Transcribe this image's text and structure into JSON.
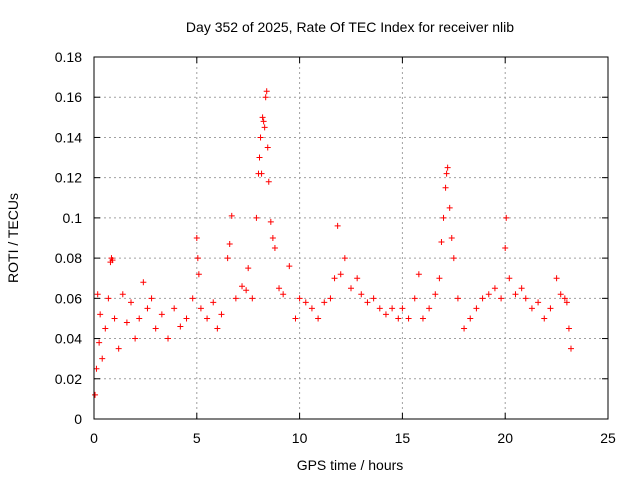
{
  "chart_data": {
    "type": "scatter",
    "title": "Day 352 of 2025, Rate Of TEC Index for receiver nlib",
    "xlabel": "GPS time / hours",
    "ylabel": "ROTI / TECUs",
    "xlim": [
      0,
      25
    ],
    "ylim": [
      0,
      0.18
    ],
    "x_ticks": [
      0,
      5,
      10,
      15,
      20,
      25
    ],
    "x_tick_labels": [
      "0",
      "5",
      "10",
      "15",
      "20",
      "25"
    ],
    "y_ticks": [
      0,
      0.02,
      0.04,
      0.06,
      0.08,
      0.1,
      0.12,
      0.14,
      0.16,
      0.18
    ],
    "y_tick_labels": [
      "0",
      "0.02",
      "0.04",
      "0.06",
      "0.08",
      "0.1",
      "0.12",
      "0.14",
      "0.16",
      "0.18"
    ],
    "grid": true,
    "marker": "plus",
    "series": [
      {
        "name": "ROTI",
        "color": "#ff0000",
        "points": [
          [
            0.05,
            0.012
          ],
          [
            0.12,
            0.025
          ],
          [
            0.18,
            0.062
          ],
          [
            0.25,
            0.038
          ],
          [
            0.3,
            0.052
          ],
          [
            0.4,
            0.03
          ],
          [
            0.55,
            0.045
          ],
          [
            0.7,
            0.06
          ],
          [
            0.8,
            0.078
          ],
          [
            0.85,
            0.08
          ],
          [
            0.9,
            0.079
          ],
          [
            1.0,
            0.05
          ],
          [
            1.2,
            0.035
          ],
          [
            1.4,
            0.062
          ],
          [
            1.6,
            0.048
          ],
          [
            1.8,
            0.058
          ],
          [
            2.0,
            0.04
          ],
          [
            2.2,
            0.05
          ],
          [
            2.4,
            0.068
          ],
          [
            2.6,
            0.055
          ],
          [
            2.8,
            0.06
          ],
          [
            3.0,
            0.045
          ],
          [
            3.3,
            0.052
          ],
          [
            3.6,
            0.04
          ],
          [
            3.9,
            0.055
          ],
          [
            4.2,
            0.046
          ],
          [
            4.5,
            0.05
          ],
          [
            4.8,
            0.06
          ],
          [
            5.0,
            0.09
          ],
          [
            5.05,
            0.08
          ],
          [
            5.1,
            0.072
          ],
          [
            5.2,
            0.055
          ],
          [
            5.5,
            0.05
          ],
          [
            5.8,
            0.058
          ],
          [
            6.0,
            0.045
          ],
          [
            6.2,
            0.052
          ],
          [
            6.5,
            0.08
          ],
          [
            6.6,
            0.087
          ],
          [
            6.7,
            0.101
          ],
          [
            6.9,
            0.06
          ],
          [
            7.2,
            0.066
          ],
          [
            7.4,
            0.064
          ],
          [
            7.5,
            0.075
          ],
          [
            7.7,
            0.06
          ],
          [
            7.9,
            0.1
          ],
          [
            8.0,
            0.122
          ],
          [
            8.05,
            0.13
          ],
          [
            8.1,
            0.14
          ],
          [
            8.15,
            0.122
          ],
          [
            8.2,
            0.15
          ],
          [
            8.25,
            0.148
          ],
          [
            8.3,
            0.145
          ],
          [
            8.35,
            0.16
          ],
          [
            8.4,
            0.163
          ],
          [
            8.45,
            0.135
          ],
          [
            8.5,
            0.118
          ],
          [
            8.6,
            0.098
          ],
          [
            8.7,
            0.09
          ],
          [
            8.8,
            0.085
          ],
          [
            9.0,
            0.065
          ],
          [
            9.2,
            0.062
          ],
          [
            9.5,
            0.076
          ],
          [
            9.8,
            0.05
          ],
          [
            10.0,
            0.06
          ],
          [
            10.3,
            0.058
          ],
          [
            10.6,
            0.055
          ],
          [
            10.9,
            0.05
          ],
          [
            11.2,
            0.058
          ],
          [
            11.5,
            0.06
          ],
          [
            11.7,
            0.07
          ],
          [
            11.85,
            0.096
          ],
          [
            12.0,
            0.072
          ],
          [
            12.2,
            0.08
          ],
          [
            12.5,
            0.065
          ],
          [
            12.8,
            0.07
          ],
          [
            13.0,
            0.062
          ],
          [
            13.3,
            0.058
          ],
          [
            13.6,
            0.06
          ],
          [
            13.9,
            0.055
          ],
          [
            14.2,
            0.052
          ],
          [
            14.5,
            0.055
          ],
          [
            14.8,
            0.05
          ],
          [
            15.0,
            0.055
          ],
          [
            15.3,
            0.05
          ],
          [
            15.6,
            0.06
          ],
          [
            15.8,
            0.072
          ],
          [
            16.0,
            0.05
          ],
          [
            16.3,
            0.055
          ],
          [
            16.6,
            0.062
          ],
          [
            16.8,
            0.07
          ],
          [
            16.9,
            0.088
          ],
          [
            17.0,
            0.1
          ],
          [
            17.1,
            0.115
          ],
          [
            17.15,
            0.122
          ],
          [
            17.2,
            0.125
          ],
          [
            17.3,
            0.105
          ],
          [
            17.4,
            0.09
          ],
          [
            17.5,
            0.08
          ],
          [
            17.7,
            0.06
          ],
          [
            18.0,
            0.045
          ],
          [
            18.3,
            0.05
          ],
          [
            18.6,
            0.055
          ],
          [
            18.9,
            0.06
          ],
          [
            19.2,
            0.062
          ],
          [
            19.5,
            0.065
          ],
          [
            19.8,
            0.06
          ],
          [
            20.0,
            0.085
          ],
          [
            20.05,
            0.1
          ],
          [
            20.2,
            0.07
          ],
          [
            20.5,
            0.062
          ],
          [
            20.8,
            0.065
          ],
          [
            21.0,
            0.06
          ],
          [
            21.3,
            0.055
          ],
          [
            21.6,
            0.058
          ],
          [
            21.9,
            0.05
          ],
          [
            22.2,
            0.055
          ],
          [
            22.5,
            0.07
          ],
          [
            22.7,
            0.062
          ],
          [
            22.9,
            0.06
          ],
          [
            23.0,
            0.058
          ],
          [
            23.1,
            0.045
          ],
          [
            23.2,
            0.035
          ]
        ]
      }
    ]
  }
}
